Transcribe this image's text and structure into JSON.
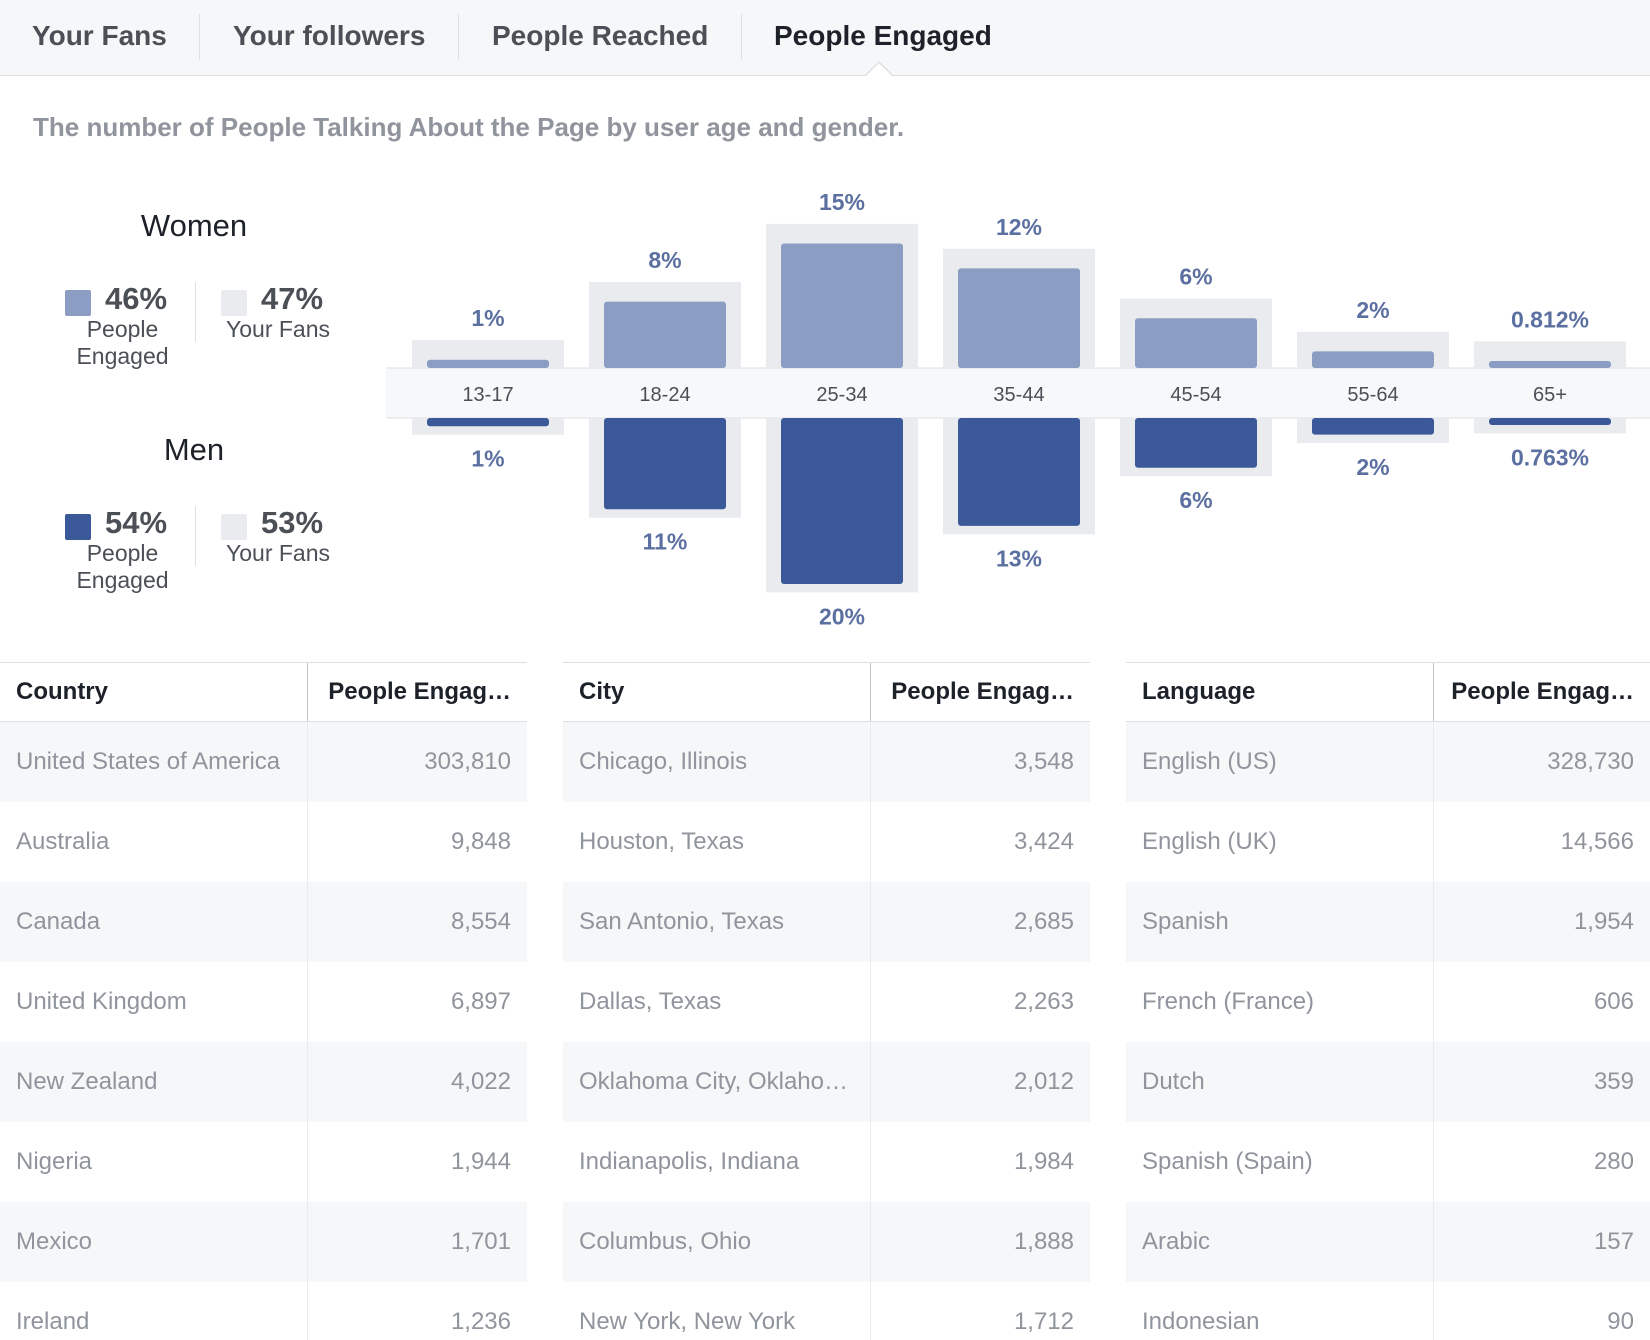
{
  "tabs": [
    {
      "label": "Your Fans",
      "active": false
    },
    {
      "label": "Your followers",
      "active": false
    },
    {
      "label": "People Reached",
      "active": false
    },
    {
      "label": "People Engaged",
      "active": true
    }
  ],
  "subtitle": "The number of People Talking About the Page by user age and gender.",
  "legend": {
    "women": {
      "title": "Women",
      "engaged_pct": "46%",
      "engaged_label": "People Engaged",
      "fans_pct": "47%",
      "fans_label": "Your Fans"
    },
    "men": {
      "title": "Men",
      "engaged_pct": "54%",
      "engaged_label": "People Engaged",
      "fans_pct": "53%",
      "fans_label": "Your Fans"
    }
  },
  "colors": {
    "women_bar": "#8b9dc3",
    "men_bar": "#3b5998",
    "fans_bar": "#e9ebee",
    "value_label": "#5b70a0"
  },
  "chart_data": {
    "type": "bar",
    "categories": [
      "13-17",
      "18-24",
      "25-34",
      "35-44",
      "45-54",
      "55-64",
      "65+"
    ],
    "series": [
      {
        "name": "Women People Engaged",
        "values": [
          1,
          8,
          15,
          12,
          6,
          2,
          0.812
        ],
        "labels": [
          "1%",
          "8%",
          "15%",
          "12%",
          "6%",
          "2%",
          "0.812%"
        ]
      },
      {
        "name": "Men People Engaged",
        "values": [
          1,
          11,
          20,
          13,
          6,
          2,
          0.763
        ],
        "labels": [
          "1%",
          "11%",
          "20%",
          "13%",
          "6%",
          "2%",
          "0.763%"
        ]
      }
    ],
    "title": "",
    "xlabel": "",
    "ylabel": ""
  },
  "tables": [
    {
      "headers": [
        "Country",
        "People Engag…"
      ],
      "rows": [
        [
          "United States of America",
          "303,810"
        ],
        [
          "Australia",
          "9,848"
        ],
        [
          "Canada",
          "8,554"
        ],
        [
          "United Kingdom",
          "6,897"
        ],
        [
          "New Zealand",
          "4,022"
        ],
        [
          "Nigeria",
          "1,944"
        ],
        [
          "Mexico",
          "1,701"
        ],
        [
          "Ireland",
          "1,236"
        ]
      ]
    },
    {
      "headers": [
        "City",
        "People Engag…"
      ],
      "rows": [
        [
          "Chicago, Illinois",
          "3,548"
        ],
        [
          "Houston, Texas",
          "3,424"
        ],
        [
          "San Antonio, Texas",
          "2,685"
        ],
        [
          "Dallas, Texas",
          "2,263"
        ],
        [
          "Oklahoma City, Oklaho…",
          "2,012"
        ],
        [
          "Indianapolis, Indiana",
          "1,984"
        ],
        [
          "Columbus, Ohio",
          "1,888"
        ],
        [
          "New York, New York",
          "1,712"
        ]
      ]
    },
    {
      "headers": [
        "Language",
        "People Engag…"
      ],
      "rows": [
        [
          "English (US)",
          "328,730"
        ],
        [
          "English (UK)",
          "14,566"
        ],
        [
          "Spanish",
          "1,954"
        ],
        [
          "French (France)",
          "606"
        ],
        [
          "Dutch",
          "359"
        ],
        [
          "Spanish (Spain)",
          "280"
        ],
        [
          "Arabic",
          "157"
        ],
        [
          "Indonesian",
          "90"
        ]
      ]
    }
  ]
}
